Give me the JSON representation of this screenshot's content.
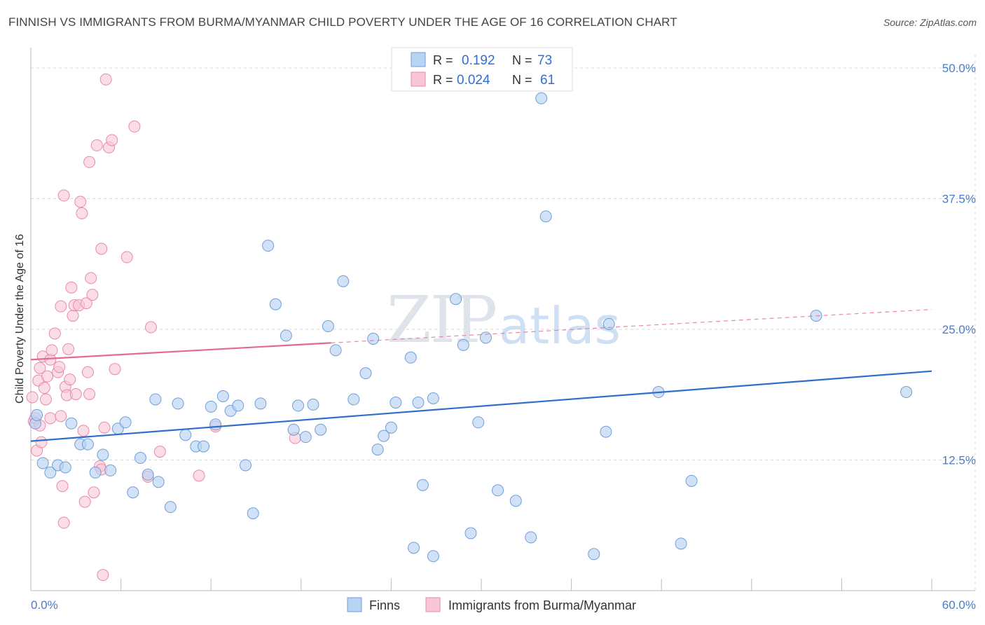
{
  "title": "FINNISH VS IMMIGRANTS FROM BURMA/MYANMAR CHILD POVERTY UNDER THE AGE OF 16 CORRELATION CHART",
  "source": "Source: ZipAtlas.com",
  "watermark": {
    "zip": "ZIP",
    "atlas": "atlas"
  },
  "colors": {
    "finns_fill": "#b9d3f2",
    "finns_stroke": "#6f9fd8",
    "finns_line": "#2f6fcb",
    "burma_fill": "#f8c6d5",
    "burma_stroke": "#e98aa8",
    "burma_line": "#e46a93",
    "grid": "#d9d9d9",
    "tick": "#4a7cc9"
  },
  "legend": {
    "rows": [
      {
        "r_label": "R =",
        "r_value": "0.192",
        "n_label": "N =",
        "n_value": "73"
      },
      {
        "r_label": "R =",
        "r_value": "0.024",
        "n_label": "N =",
        "n_value": "61"
      }
    ]
  },
  "bottom_legend": [
    "Finns",
    "Immigrants from Burma/Myanmar"
  ],
  "chart_data": {
    "type": "scatter",
    "xlabel": "",
    "ylabel": "Child Poverty Under the Age of 16",
    "xlim": [
      0,
      60
    ],
    "ylim": [
      0,
      50
    ],
    "x_tick_labels": [
      "0.0%",
      "60.0%"
    ],
    "y_ticks": [
      12.5,
      25.0,
      37.5,
      50.0
    ],
    "y_tick_labels": [
      "12.5%",
      "25.0%",
      "37.5%",
      "50.0%"
    ],
    "grid": true,
    "series": [
      {
        "name": "Finns",
        "trend": {
          "x": [
            0,
            60
          ],
          "y": [
            14.3,
            21.0
          ],
          "style": "solid"
        },
        "points": [
          [
            0.3,
            16.0
          ],
          [
            0.4,
            16.8
          ],
          [
            0.8,
            12.2
          ],
          [
            1.3,
            11.3
          ],
          [
            1.8,
            12.0
          ],
          [
            2.3,
            11.8
          ],
          [
            2.7,
            16.0
          ],
          [
            3.3,
            14.0
          ],
          [
            3.8,
            14.0
          ],
          [
            4.3,
            11.3
          ],
          [
            4.8,
            13.0
          ],
          [
            5.3,
            11.5
          ],
          [
            5.8,
            15.5
          ],
          [
            6.3,
            16.1
          ],
          [
            6.8,
            9.4
          ],
          [
            7.3,
            12.7
          ],
          [
            7.8,
            11.1
          ],
          [
            8.3,
            18.3
          ],
          [
            8.5,
            10.4
          ],
          [
            9.3,
            8.0
          ],
          [
            9.8,
            17.9
          ],
          [
            10.3,
            14.9
          ],
          [
            11.0,
            13.8
          ],
          [
            11.5,
            13.8
          ],
          [
            12.0,
            17.6
          ],
          [
            12.3,
            15.9
          ],
          [
            12.8,
            18.6
          ],
          [
            13.3,
            17.2
          ],
          [
            13.8,
            17.7
          ],
          [
            14.3,
            12.0
          ],
          [
            14.8,
            7.4
          ],
          [
            15.3,
            17.9
          ],
          [
            15.8,
            33.0
          ],
          [
            16.3,
            27.4
          ],
          [
            17.0,
            24.4
          ],
          [
            17.5,
            15.4
          ],
          [
            17.8,
            17.7
          ],
          [
            18.3,
            14.7
          ],
          [
            18.8,
            17.8
          ],
          [
            19.3,
            15.4
          ],
          [
            19.8,
            25.3
          ],
          [
            20.3,
            23.0
          ],
          [
            20.8,
            29.6
          ],
          [
            21.5,
            18.3
          ],
          [
            22.3,
            20.8
          ],
          [
            22.8,
            24.1
          ],
          [
            23.1,
            13.5
          ],
          [
            23.5,
            14.8
          ],
          [
            24.0,
            15.6
          ],
          [
            24.3,
            18.0
          ],
          [
            25.3,
            22.3
          ],
          [
            25.5,
            4.1
          ],
          [
            25.8,
            18.0
          ],
          [
            26.1,
            10.1
          ],
          [
            26.8,
            3.3
          ],
          [
            26.8,
            18.4
          ],
          [
            28.3,
            27.9
          ],
          [
            28.8,
            23.5
          ],
          [
            29.3,
            5.5
          ],
          [
            29.8,
            16.1
          ],
          [
            30.3,
            24.2
          ],
          [
            31.1,
            9.6
          ],
          [
            32.3,
            8.6
          ],
          [
            33.3,
            5.1
          ],
          [
            34.0,
            47.1
          ],
          [
            34.3,
            35.8
          ],
          [
            37.5,
            3.5
          ],
          [
            38.3,
            15.2
          ],
          [
            38.5,
            25.5
          ],
          [
            41.8,
            19.0
          ],
          [
            43.3,
            4.5
          ],
          [
            44.0,
            10.5
          ],
          [
            52.3,
            26.3
          ],
          [
            58.3,
            19.0
          ]
        ]
      },
      {
        "name": "Immigrants from Burma/Myanmar",
        "trend": {
          "x": [
            0,
            20
          ],
          "y": [
            22.1,
            23.7
          ],
          "style": "solid",
          "ext_x": [
            20,
            60
          ],
          "ext_y": [
            23.7,
            26.9
          ],
          "ext_style": "dashed"
        },
        "points": [
          [
            0.1,
            18.5
          ],
          [
            0.2,
            16.2
          ],
          [
            0.3,
            16.5
          ],
          [
            0.4,
            13.4
          ],
          [
            0.5,
            20.1
          ],
          [
            0.6,
            21.3
          ],
          [
            0.6,
            15.8
          ],
          [
            0.7,
            14.2
          ],
          [
            0.8,
            22.4
          ],
          [
            0.9,
            19.4
          ],
          [
            1.0,
            18.3
          ],
          [
            1.1,
            20.5
          ],
          [
            1.3,
            22.1
          ],
          [
            1.3,
            16.5
          ],
          [
            1.4,
            23.0
          ],
          [
            1.6,
            24.6
          ],
          [
            1.8,
            20.9
          ],
          [
            1.9,
            21.4
          ],
          [
            2.0,
            27.2
          ],
          [
            2.0,
            16.7
          ],
          [
            2.1,
            10.0
          ],
          [
            2.2,
            6.5
          ],
          [
            2.2,
            37.8
          ],
          [
            2.3,
            19.5
          ],
          [
            2.4,
            18.7
          ],
          [
            2.5,
            23.1
          ],
          [
            2.6,
            20.2
          ],
          [
            2.7,
            29.0
          ],
          [
            2.8,
            26.3
          ],
          [
            2.9,
            27.3
          ],
          [
            3.0,
            18.8
          ],
          [
            3.2,
            27.3
          ],
          [
            3.3,
            37.2
          ],
          [
            3.4,
            36.1
          ],
          [
            3.5,
            15.3
          ],
          [
            3.6,
            8.5
          ],
          [
            3.7,
            27.5
          ],
          [
            3.8,
            20.9
          ],
          [
            3.9,
            18.8
          ],
          [
            3.9,
            41.0
          ],
          [
            4.0,
            29.9
          ],
          [
            4.1,
            28.3
          ],
          [
            4.2,
            9.4
          ],
          [
            4.4,
            42.6
          ],
          [
            4.6,
            11.9
          ],
          [
            4.7,
            11.6
          ],
          [
            4.7,
            32.7
          ],
          [
            4.8,
            1.5
          ],
          [
            4.9,
            15.6
          ],
          [
            5.0,
            48.9
          ],
          [
            5.2,
            42.4
          ],
          [
            5.4,
            43.1
          ],
          [
            5.6,
            21.2
          ],
          [
            6.4,
            31.9
          ],
          [
            6.9,
            44.4
          ],
          [
            7.8,
            10.9
          ],
          [
            8.0,
            25.2
          ],
          [
            8.6,
            13.3
          ],
          [
            11.2,
            11.0
          ],
          [
            12.3,
            15.7
          ],
          [
            17.6,
            14.6
          ]
        ]
      }
    ]
  }
}
